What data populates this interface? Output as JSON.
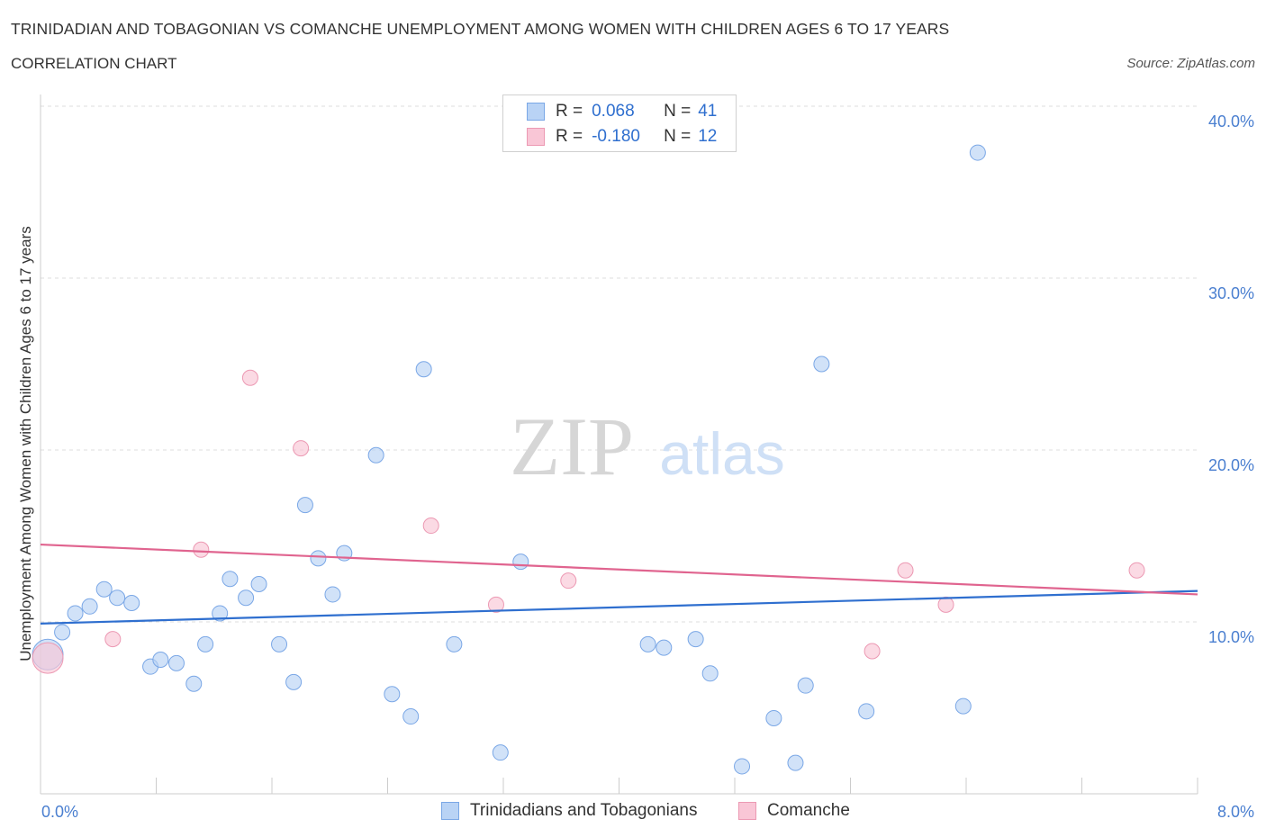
{
  "header": {
    "title": "TRINIDADIAN AND TOBAGONIAN VS COMANCHE UNEMPLOYMENT AMONG WOMEN WITH CHILDREN AGES 6 TO 17 YEARS",
    "subtitle": "CORRELATION CHART",
    "source": "Source: ZipAtlas.com"
  },
  "watermark": {
    "zip": "ZIP",
    "atlas": "atlas"
  },
  "legend_top": {
    "rows": [
      {
        "r_label": "R =",
        "r_value": "0.068",
        "n_label": "N =",
        "n_value": "41",
        "color": "#b9d3f5",
        "border": "#7aa7e6"
      },
      {
        "r_label": "R =",
        "r_value": "-0.180",
        "n_label": "N =",
        "n_value": "12",
        "color": "#f9c6d6",
        "border": "#ec99b3"
      }
    ]
  },
  "legend_bottom": {
    "items": [
      {
        "label": "Trinidadians and Tobagonians",
        "color": "#b9d3f5",
        "border": "#7aa7e6"
      },
      {
        "label": "Comanche",
        "color": "#f9c6d6",
        "border": "#ec99b3"
      }
    ]
  },
  "chart_data": {
    "type": "scatter",
    "title": "TRINIDADIAN AND TOBAGONIAN VS COMANCHE UNEMPLOYMENT AMONG WOMEN WITH CHILDREN AGES 6 TO 17 YEARS",
    "subtitle": "CORRELATION CHART",
    "xlabel": "",
    "ylabel": "Unemployment Among Women with Children Ages 6 to 17 years",
    "xlim": [
      0,
      8
    ],
    "ylim": [
      0,
      40
    ],
    "x_ticks": [
      "0.0%",
      "8.0%"
    ],
    "y_ticks": [
      {
        "value": 10,
        "label": "10.0%"
      },
      {
        "value": 20,
        "label": "20.0%"
      },
      {
        "value": 30,
        "label": "30.0%"
      },
      {
        "value": 40,
        "label": "40.0%"
      }
    ],
    "grid": "horizontal dashed",
    "legend_position": "bottom",
    "series": [
      {
        "name": "Trinidadians and Tobagonians",
        "color": "#7aa7e6",
        "fill": "#b9d3f5",
        "trend": {
          "x": [
            0,
            8
          ],
          "y": [
            9.9,
            11.8
          ]
        },
        "points": [
          {
            "x": 0.05,
            "y": 8.1,
            "big": true
          },
          {
            "x": 0.15,
            "y": 9.4
          },
          {
            "x": 0.24,
            "y": 10.5
          },
          {
            "x": 0.34,
            "y": 10.9
          },
          {
            "x": 0.44,
            "y": 11.9
          },
          {
            "x": 0.53,
            "y": 11.4
          },
          {
            "x": 0.63,
            "y": 11.1
          },
          {
            "x": 0.76,
            "y": 7.4
          },
          {
            "x": 0.83,
            "y": 7.8
          },
          {
            "x": 0.94,
            "y": 7.6
          },
          {
            "x": 1.06,
            "y": 6.4
          },
          {
            "x": 1.14,
            "y": 8.7
          },
          {
            "x": 1.24,
            "y": 10.5
          },
          {
            "x": 1.31,
            "y": 12.5
          },
          {
            "x": 1.42,
            "y": 11.4
          },
          {
            "x": 1.51,
            "y": 12.2
          },
          {
            "x": 1.65,
            "y": 8.7
          },
          {
            "x": 1.75,
            "y": 6.5
          },
          {
            "x": 1.83,
            "y": 16.8
          },
          {
            "x": 1.92,
            "y": 13.7
          },
          {
            "x": 2.02,
            "y": 11.6
          },
          {
            "x": 2.1,
            "y": 14.0
          },
          {
            "x": 2.32,
            "y": 19.7
          },
          {
            "x": 2.43,
            "y": 5.8
          },
          {
            "x": 2.56,
            "y": 4.5
          },
          {
            "x": 2.65,
            "y": 24.7
          },
          {
            "x": 2.86,
            "y": 8.7
          },
          {
            "x": 3.18,
            "y": 2.4
          },
          {
            "x": 3.32,
            "y": 13.5
          },
          {
            "x": 4.2,
            "y": 8.7
          },
          {
            "x": 4.31,
            "y": 8.5
          },
          {
            "x": 4.53,
            "y": 9.0
          },
          {
            "x": 4.63,
            "y": 7.0
          },
          {
            "x": 4.85,
            "y": 1.6
          },
          {
            "x": 5.07,
            "y": 4.4
          },
          {
            "x": 5.22,
            "y": 1.8
          },
          {
            "x": 5.29,
            "y": 6.3
          },
          {
            "x": 5.4,
            "y": 25.0
          },
          {
            "x": 5.71,
            "y": 4.8
          },
          {
            "x": 6.38,
            "y": 5.1
          },
          {
            "x": 6.48,
            "y": 37.3
          }
        ]
      },
      {
        "name": "Comanche",
        "color": "#ec99b3",
        "fill": "#f9c6d6",
        "trend": {
          "x": [
            0,
            8
          ],
          "y": [
            14.5,
            11.6
          ]
        },
        "points": [
          {
            "x": 0.05,
            "y": 7.9,
            "big": true
          },
          {
            "x": 0.5,
            "y": 9.0
          },
          {
            "x": 1.11,
            "y": 14.2
          },
          {
            "x": 1.45,
            "y": 24.2
          },
          {
            "x": 1.8,
            "y": 20.1
          },
          {
            "x": 2.7,
            "y": 15.6
          },
          {
            "x": 3.15,
            "y": 11.0
          },
          {
            "x": 3.65,
            "y": 12.4
          },
          {
            "x": 5.75,
            "y": 8.3
          },
          {
            "x": 5.98,
            "y": 13.0
          },
          {
            "x": 6.26,
            "y": 11.0
          },
          {
            "x": 7.58,
            "y": 13.0
          }
        ]
      }
    ]
  }
}
